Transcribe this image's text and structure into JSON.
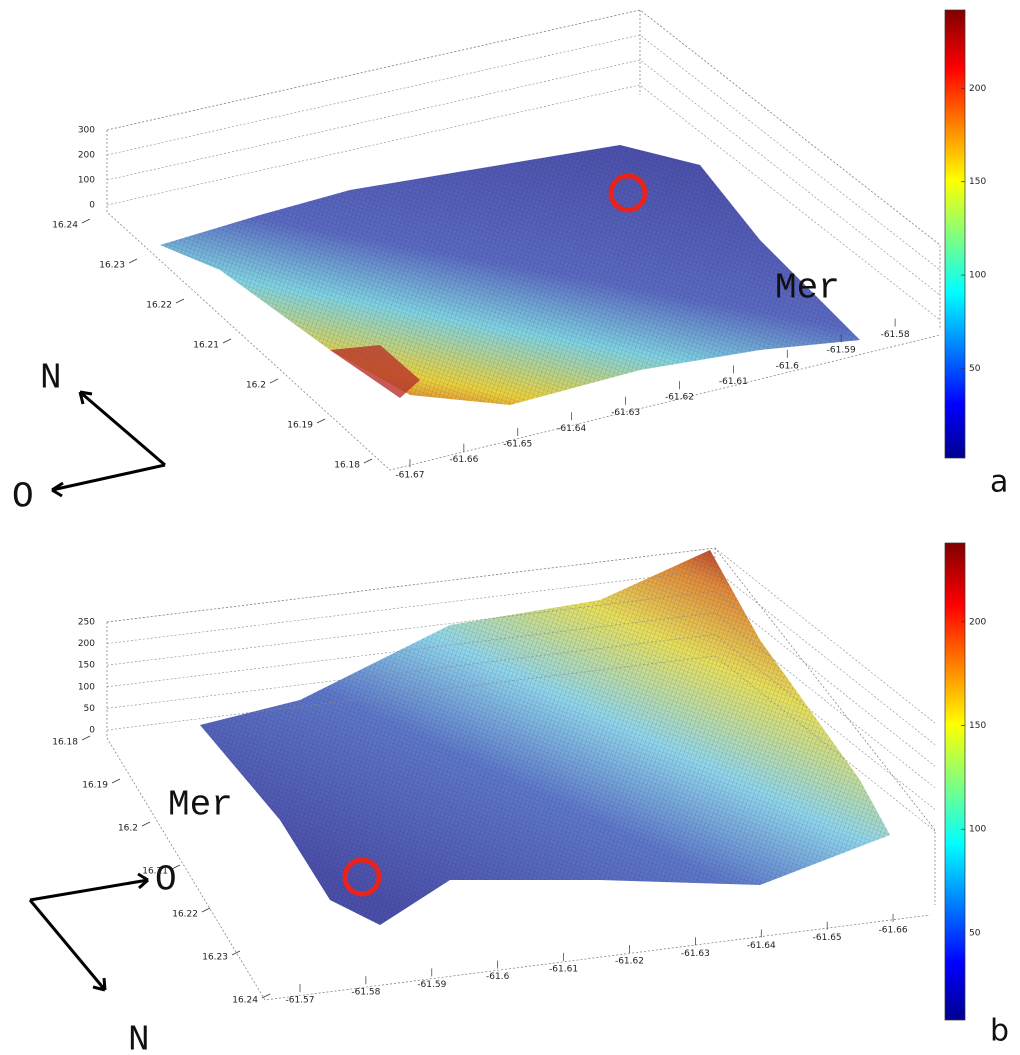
{
  "chart_data": [
    {
      "type": "surface",
      "panel_label": "a",
      "annotation": "Mer",
      "compass": {
        "north": "N",
        "west": "O"
      },
      "zlim": [
        0,
        300
      ],
      "zticks": [
        0,
        100,
        200,
        300
      ],
      "ylim": [
        16.18,
        16.24
      ],
      "yticks": [
        16.18,
        16.19,
        16.2,
        16.21,
        16.22,
        16.23,
        16.24
      ],
      "xlim": [
        -61.675,
        -61.57
      ],
      "xticks": [
        -61.67,
        -61.66,
        -61.65,
        -61.64,
        -61.63,
        -61.62,
        -61.61,
        -61.6,
        -61.59,
        -61.58
      ],
      "colorbar": {
        "clim": [
          2,
          242
        ],
        "ticks": [
          50,
          100,
          150,
          200
        ]
      }
    },
    {
      "type": "surface",
      "panel_label": "b",
      "annotation": "Mer",
      "compass": {
        "north": "N",
        "west": "O"
      },
      "zlim": [
        0,
        250
      ],
      "zticks": [
        0,
        50,
        100,
        150,
        200,
        250
      ],
      "ylim": [
        16.18,
        16.24
      ],
      "yticks": [
        16.18,
        16.19,
        16.2,
        16.21,
        16.22,
        16.23,
        16.24
      ],
      "xlim": [
        -61.57,
        -61.665
      ],
      "xticks": [
        -61.57,
        -61.58,
        -61.59,
        -61.6,
        -61.61,
        -61.62,
        -61.63,
        -61.64,
        -61.65,
        -61.66
      ],
      "colorbar": {
        "clim": [
          8,
          238
        ],
        "ticks": [
          50,
          100,
          150,
          200
        ]
      }
    }
  ]
}
